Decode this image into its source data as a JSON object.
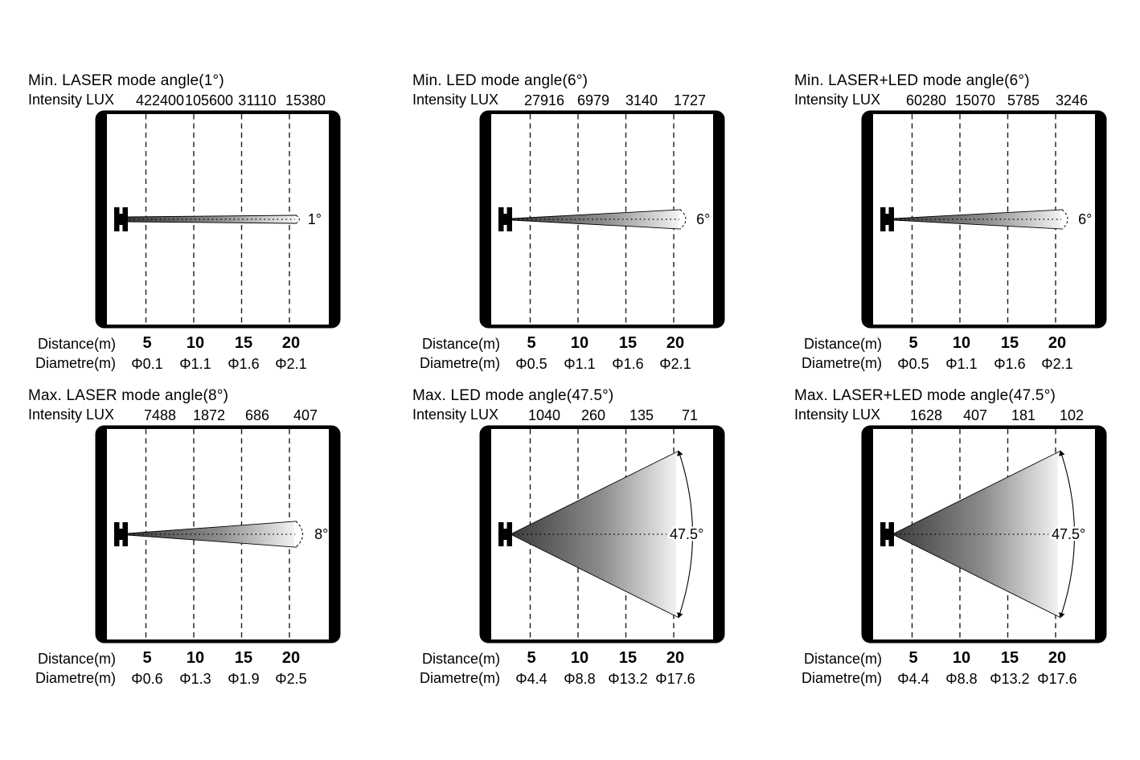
{
  "page": {
    "background": "#ffffff",
    "text_color": "#000000",
    "beam_gradient_start": "#3d3d3d",
    "beam_gradient_end": "#f2f2f2"
  },
  "panels": [
    {
      "title": "Min. LASER mode angle(1°)",
      "intensity_label": "Intensity LUX",
      "intensity_values": [
        "422400",
        "105600",
        "31110",
        "15380"
      ],
      "angle_label": "1°",
      "beam_angle_deg": 1,
      "distance_label": "Distance(m)",
      "distance_values": [
        "5",
        "10",
        "15",
        "20"
      ],
      "diametre_label": "Diametre(m)",
      "diametre_values": [
        "Φ0.1",
        "Φ1.1",
        "Φ1.6",
        "Φ2.1"
      ]
    },
    {
      "title": "Min. LED mode angle(6°)",
      "intensity_label": "Intensity LUX",
      "intensity_values": [
        "27916",
        "6979",
        "3140",
        "1727"
      ],
      "angle_label": "6°",
      "beam_angle_deg": 6,
      "distance_label": "Distance(m)",
      "distance_values": [
        "5",
        "10",
        "15",
        "20"
      ],
      "diametre_label": "Diametre(m)",
      "diametre_values": [
        "Φ0.5",
        "Φ1.1",
        "Φ1.6",
        "Φ2.1"
      ]
    },
    {
      "title": "Min. LASER+LED mode angle(6°)",
      "intensity_label": "Intensity LUX",
      "intensity_values": [
        "60280",
        "15070",
        "5785",
        "3246"
      ],
      "angle_label": "6°",
      "beam_angle_deg": 6,
      "distance_label": "Distance(m)",
      "distance_values": [
        "5",
        "10",
        "15",
        "20"
      ],
      "diametre_label": "Diametre(m)",
      "diametre_values": [
        "Φ0.5",
        "Φ1.1",
        "Φ1.6",
        "Φ2.1"
      ]
    },
    {
      "title": "Max. LASER mode angle(8°)",
      "intensity_label": "Intensity LUX",
      "intensity_values": [
        "7488",
        "1872",
        "686",
        "407"
      ],
      "angle_label": "8°",
      "beam_angle_deg": 8,
      "distance_label": "Distance(m)",
      "distance_values": [
        "5",
        "10",
        "15",
        "20"
      ],
      "diametre_label": "Diametre(m)",
      "diametre_values": [
        "Φ0.6",
        "Φ1.3",
        "Φ1.9",
        "Φ2.5"
      ]
    },
    {
      "title": "Max. LED mode angle(47.5°)",
      "intensity_label": "Intensity LUX",
      "intensity_values": [
        "1040",
        "260",
        "135",
        "71"
      ],
      "angle_label": "47.5°",
      "beam_angle_deg": 47.5,
      "distance_label": "Distance(m)",
      "distance_values": [
        "5",
        "10",
        "15",
        "20"
      ],
      "diametre_label": "Diametre(m)",
      "diametre_values": [
        "Φ4.4",
        "Φ8.8",
        "Φ13.2",
        "Φ17.6"
      ]
    },
    {
      "title": "Max. LASER+LED mode angle(47.5°)",
      "intensity_label": "Intensity LUX",
      "intensity_values": [
        "1628",
        "407",
        "181",
        "102"
      ],
      "angle_label": "47.5°",
      "beam_angle_deg": 47.5,
      "distance_label": "Distance(m)",
      "distance_values": [
        "5",
        "10",
        "15",
        "20"
      ],
      "diametre_label": "Diametre(m)",
      "diametre_values": [
        "Φ4.4",
        "Φ8.8",
        "Φ13.2",
        "Φ17.6"
      ]
    }
  ],
  "chart_data": [
    {
      "type": "table",
      "title": "Min. LASER mode angle(1°)",
      "beam_angle_deg": 1,
      "columns": [
        "Distance (m)",
        "Intensity (LUX)",
        "Diametre (m)"
      ],
      "rows": [
        [
          5,
          422400,
          0.1
        ],
        [
          10,
          105600,
          1.1
        ],
        [
          15,
          31110,
          1.6
        ],
        [
          20,
          15380,
          2.1
        ]
      ]
    },
    {
      "type": "table",
      "title": "Min. LED mode angle(6°)",
      "beam_angle_deg": 6,
      "columns": [
        "Distance (m)",
        "Intensity (LUX)",
        "Diametre (m)"
      ],
      "rows": [
        [
          5,
          27916,
          0.5
        ],
        [
          10,
          6979,
          1.1
        ],
        [
          15,
          3140,
          1.6
        ],
        [
          20,
          1727,
          2.1
        ]
      ]
    },
    {
      "type": "table",
      "title": "Min. LASER+LED mode angle(6°)",
      "beam_angle_deg": 6,
      "columns": [
        "Distance (m)",
        "Intensity (LUX)",
        "Diametre (m)"
      ],
      "rows": [
        [
          5,
          60280,
          0.5
        ],
        [
          10,
          15070,
          1.1
        ],
        [
          15,
          5785,
          1.6
        ],
        [
          20,
          3246,
          2.1
        ]
      ]
    },
    {
      "type": "table",
      "title": "Max. LASER mode angle(8°)",
      "beam_angle_deg": 8,
      "columns": [
        "Distance (m)",
        "Intensity (LUX)",
        "Diametre (m)"
      ],
      "rows": [
        [
          5,
          7488,
          0.6
        ],
        [
          10,
          1872,
          1.3
        ],
        [
          15,
          686,
          1.9
        ],
        [
          20,
          407,
          2.5
        ]
      ]
    },
    {
      "type": "table",
      "title": "Max. LED mode angle(47.5°)",
      "beam_angle_deg": 47.5,
      "columns": [
        "Distance (m)",
        "Intensity (LUX)",
        "Diametre (m)"
      ],
      "rows": [
        [
          5,
          1040,
          4.4
        ],
        [
          10,
          260,
          8.8
        ],
        [
          15,
          135,
          13.2
        ],
        [
          20,
          71,
          17.6
        ]
      ]
    },
    {
      "type": "table",
      "title": "Max. LASER+LED mode angle(47.5°)",
      "beam_angle_deg": 47.5,
      "columns": [
        "Distance (m)",
        "Intensity (LUX)",
        "Diametre (m)"
      ],
      "rows": [
        [
          5,
          1628,
          4.4
        ],
        [
          10,
          407,
          8.8
        ],
        [
          15,
          181,
          13.2
        ],
        [
          20,
          102,
          17.6
        ]
      ]
    }
  ]
}
